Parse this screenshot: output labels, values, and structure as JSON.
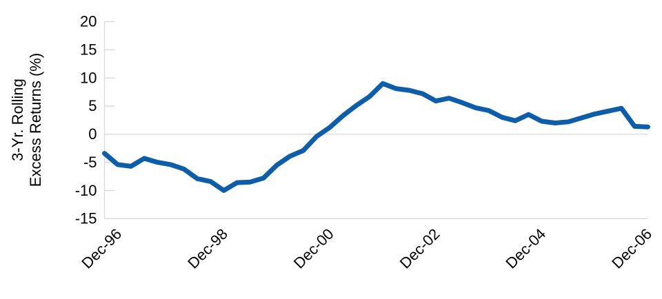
{
  "chart_data": {
    "type": "line",
    "ylabel": "3-Yr. Rolling Excess Returns (%)",
    "ylabel_line1": "3-Yr. Rolling",
    "ylabel_line2": "Excess Returns (%)",
    "xlabel": "",
    "ylim": [
      -15,
      20
    ],
    "y_ticks": [
      20,
      15,
      10,
      5,
      0,
      -5,
      -10,
      -15
    ],
    "x_tick_labels": [
      "Dec-96",
      "Dec-98",
      "Dec-00",
      "Dec-02",
      "Dec-04",
      "Dec-06"
    ],
    "grid": "horizontal zero line only",
    "legend_position": "none",
    "series": [
      {
        "name": "3-Yr. Rolling Excess Returns (%)",
        "color": "#0E5DA8",
        "x": [
          "Sep-96",
          "Dec-96",
          "Mar-97",
          "Jun-97",
          "Sep-97",
          "Dec-97",
          "Mar-98",
          "Jun-98",
          "Sep-98",
          "Dec-98",
          "Mar-99",
          "Jun-99",
          "Sep-99",
          "Dec-99",
          "Mar-00",
          "Jun-00",
          "Sep-00",
          "Dec-00",
          "Mar-01",
          "Jun-01",
          "Sep-01",
          "Dec-01",
          "Mar-02",
          "Jun-02",
          "Sep-02",
          "Dec-02",
          "Mar-03",
          "Jun-03",
          "Sep-03",
          "Dec-03",
          "Mar-04",
          "Jun-04",
          "Sep-04",
          "Dec-04",
          "Mar-05",
          "Jun-05",
          "Sep-05",
          "Dec-05",
          "Mar-06",
          "Jun-06",
          "Sep-06",
          "Dec-06"
        ],
        "values": [
          -3.4,
          -5.4,
          -5.7,
          -4.3,
          -5.0,
          -5.4,
          -6.2,
          -7.9,
          -8.4,
          -10.0,
          -8.6,
          -8.5,
          -7.8,
          -5.5,
          -3.9,
          -2.9,
          -0.4,
          1.2,
          3.3,
          5.1,
          6.7,
          9.0,
          8.1,
          7.8,
          7.2,
          5.9,
          6.4,
          5.6,
          4.7,
          4.2,
          3.0,
          2.4,
          3.5,
          2.3,
          2.0,
          2.2,
          2.9,
          3.6,
          4.1,
          4.6,
          1.4,
          1.3
        ]
      }
    ]
  },
  "colors": {
    "background": "#FFFFFF",
    "axis": "#D9D9D9",
    "zero_gridline": "#D8D8D8",
    "text": "#000000",
    "line": "#0E5DA8"
  }
}
